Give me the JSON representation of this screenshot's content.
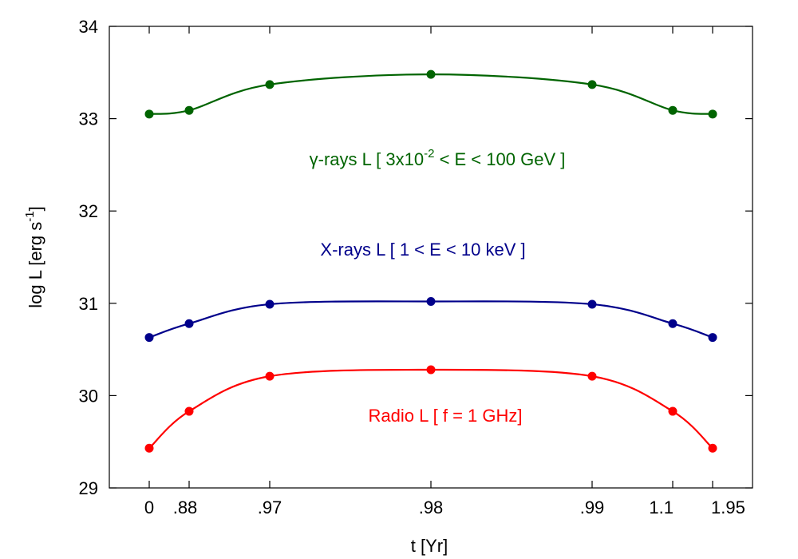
{
  "chart_data": {
    "type": "line",
    "xlabel": "t [Yr]",
    "ylabel_main": "log L [erg s",
    "ylabel_sup": "-1",
    "ylabel_close": "]",
    "ylim": [
      29,
      34
    ],
    "yticks": [
      "29",
      "30",
      "31",
      "32",
      "33",
      "34"
    ],
    "x_categories": [
      "0",
      ".88",
      ".97",
      ".98",
      ".99",
      "1.1",
      "1.95"
    ],
    "grid": false,
    "series": [
      {
        "key": "gamma",
        "color": "#006400",
        "values": [
          33.05,
          33.09,
          33.37,
          33.48,
          33.37,
          33.09,
          33.05
        ]
      },
      {
        "key": "xray",
        "color": "#00008b",
        "values": [
          30.63,
          30.78,
          30.99,
          31.02,
          30.99,
          30.78,
          30.63
        ]
      },
      {
        "key": "radio",
        "color": "#ff0000",
        "values": [
          29.43,
          29.83,
          30.21,
          30.28,
          30.21,
          29.83,
          29.43
        ]
      }
    ],
    "annotations": {
      "gamma": {
        "pre": "γ-rays L [ 3x10",
        "sup": "-2",
        "post": " < E < 100 GeV ]",
        "color": "#006400"
      },
      "xray": {
        "text": "X-rays L [ 1 < E < 10 keV ]",
        "color": "#00008b"
      },
      "radio": {
        "text": "Radio L [ f = 1 GHz]",
        "color": "#ff0000"
      }
    }
  }
}
